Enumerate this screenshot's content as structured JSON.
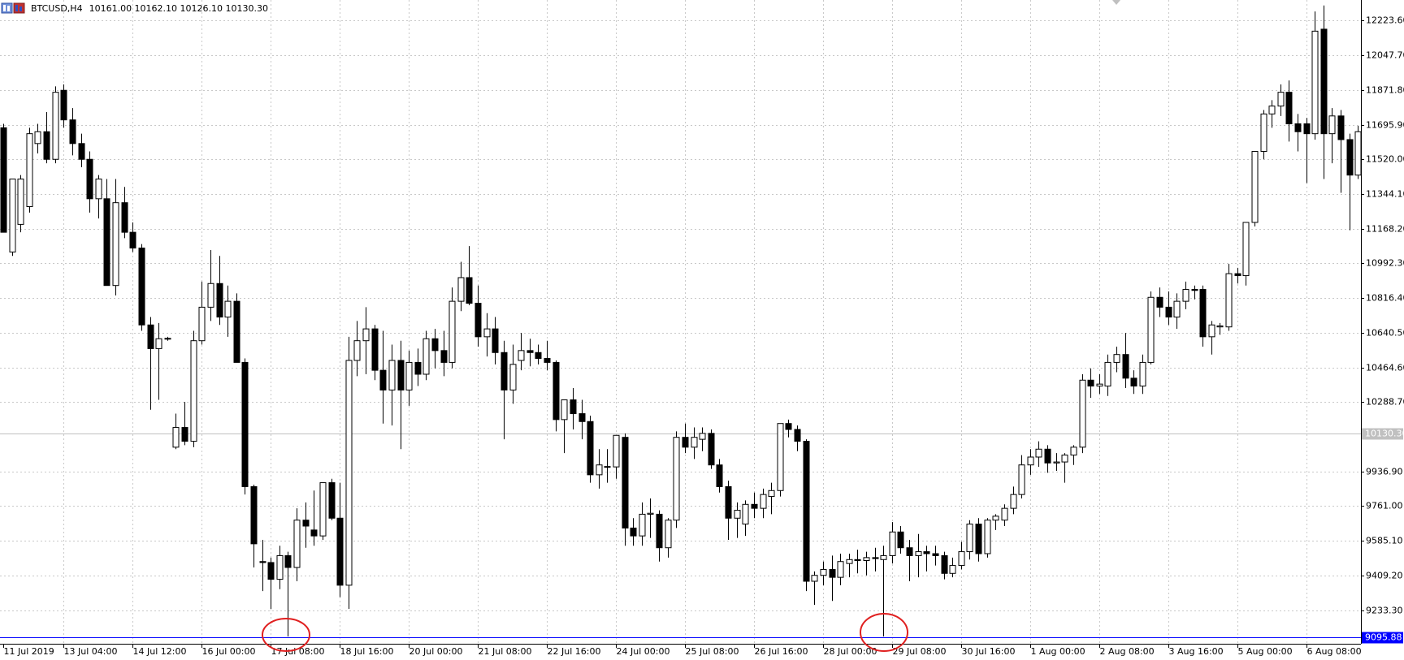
{
  "chart_data": {
    "type": "candlestick",
    "title": "BTCUSD,H4",
    "subtitle": "10161.00 10162.10 10126.10 10130.30",
    "up_color": "#ffffff",
    "down_color": "#000000",
    "wick_color": "#000000",
    "grid": true,
    "ylim": [
      9063,
      12328
    ],
    "yticks": [
      {
        "value": 12223.6,
        "label": "12223.60"
      },
      {
        "value": 12047.7,
        "label": "12047.70"
      },
      {
        "value": 11871.8,
        "label": "11871.80"
      },
      {
        "value": 11695.9,
        "label": "11695.90"
      },
      {
        "value": 11520,
        "label": "11520.00"
      },
      {
        "value": 11344.1,
        "label": "11344.10"
      },
      {
        "value": 11168.2,
        "label": "11168.20"
      },
      {
        "value": 10992.3,
        "label": "10992.30"
      },
      {
        "value": 10816.4,
        "label": "10816.40"
      },
      {
        "value": 10640.5,
        "label": "10640.50"
      },
      {
        "value": 10464.6,
        "label": "10464.60"
      },
      {
        "value": 10288.7,
        "label": "10288.70"
      },
      {
        "value": 9936.9,
        "label": "9936.90"
      },
      {
        "value": 9761,
        "label": "9761.00"
      },
      {
        "value": 9585.1,
        "label": "9585.10"
      },
      {
        "value": 9409.2,
        "label": "9409.20"
      },
      {
        "value": 9233.3,
        "label": "9233.30"
      }
    ],
    "hlines": [
      {
        "value": 10130.3,
        "label": "10130.30",
        "color": "#c0c0c0"
      },
      {
        "value": 9095.88,
        "label": "9095.88",
        "color": "#0000ff"
      }
    ],
    "categories": [
      "11 Jul 2019",
      null,
      null,
      null,
      null,
      null,
      null,
      "13 Jul 04:00",
      null,
      null,
      null,
      null,
      null,
      null,
      null,
      "14 Jul 12:00",
      null,
      null,
      null,
      null,
      null,
      null,
      null,
      "16 Jul 00:00",
      null,
      null,
      null,
      null,
      null,
      null,
      null,
      "17 Jul 08:00",
      null,
      null,
      null,
      null,
      null,
      null,
      null,
      "18 Jul 16:00",
      null,
      null,
      null,
      null,
      null,
      null,
      null,
      "20 Jul 00:00",
      null,
      null,
      null,
      null,
      null,
      null,
      null,
      "21 Jul 08:00",
      null,
      null,
      null,
      null,
      null,
      null,
      null,
      "22 Jul 16:00",
      null,
      null,
      null,
      null,
      null,
      null,
      null,
      "24 Jul 00:00",
      null,
      null,
      null,
      null,
      null,
      null,
      null,
      "25 Jul 08:00",
      null,
      null,
      null,
      null,
      null,
      null,
      null,
      "26 Jul 16:00",
      null,
      null,
      null,
      null,
      null,
      null,
      null,
      "28 Jul 00:00",
      null,
      null,
      null,
      null,
      null,
      null,
      null,
      "29 Jul 08:00",
      null,
      null,
      null,
      null,
      null,
      null,
      null,
      "30 Jul 16:00",
      null,
      null,
      null,
      null,
      null,
      null,
      null,
      "1 Aug 00:00",
      null,
      null,
      null,
      null,
      null,
      null,
      null,
      "2 Aug 08:00",
      null,
      null,
      null,
      null,
      null,
      null,
      null,
      "3 Aug 16:00",
      null,
      null,
      null,
      null,
      null,
      null,
      null,
      "5 Aug 00:00",
      null,
      null,
      null,
      null,
      null,
      null,
      null,
      "6 Aug 08:00",
      null,
      null,
      null,
      null,
      null,
      null
    ],
    "open": [
      11680,
      11050,
      11190,
      11280,
      11600,
      11660,
      11520,
      11870,
      11720,
      11600,
      11520,
      11320,
      11320,
      10880,
      11300,
      11150,
      11070,
      10680,
      10560,
      10610,
      10060,
      10160,
      10090,
      10600,
      10770,
      10890,
      10720,
      10800,
      10490,
      9860,
      9480,
      9475,
      9390,
      9510,
      9450,
      9690,
      9640,
      9610,
      9880,
      9700,
      9360,
      10500,
      10600,
      10660,
      10450,
      10350,
      10500,
      10350,
      10490,
      10430,
      10610,
      10550,
      10490,
      10800,
      10920,
      10790,
      10620,
      10660,
      10540,
      10350,
      10500,
      10550,
      10540,
      10510,
      10490,
      10200,
      10300,
      10230,
      10190,
      9920,
      9960,
      9960,
      10110,
      9650,
      9610,
      9720,
      9720,
      9550,
      9690,
      10110,
      10060,
      10100,
      10130,
      9970,
      9860,
      9700,
      9670,
      9770,
      9750,
      9810,
      9840,
      10180,
      10150,
      10090,
      9380,
      9410,
      9440,
      9400,
      9470,
      9490,
      9485,
      9500,
      9490,
      9510,
      9630,
      9550,
      9510,
      9530,
      9520,
      9510,
      9420,
      9460,
      9530,
      9670,
      9520,
      9690,
      9690,
      9750,
      9820,
      9970,
      10010,
      10050,
      9980,
      9985,
      10020,
      10060,
      10400,
      10370,
      10370,
      10490,
      10530,
      10410,
      10370,
      10490,
      10820,
      10770,
      10720,
      10800,
      10860,
      10860,
      10620,
      10670,
      10670,
      10940,
      10930,
      11200,
      11560,
      11750,
      11790,
      11860,
      11700,
      11700,
      11650,
      12180,
      11650,
      11740,
      11620,
      11440
    ],
    "high": [
      11700,
      11420,
      11440,
      11680,
      11700,
      11760,
      11890,
      11900,
      11780,
      11650,
      11560,
      11440,
      11420,
      11420,
      11380,
      11200,
      11090,
      10720,
      10690,
      10620,
      10230,
      10290,
      10650,
      10900,
      11060,
      11030,
      10880,
      10840,
      10510,
      9870,
      9590,
      9500,
      9560,
      9530,
      9750,
      9780,
      9840,
      9880,
      9900,
      9880,
      10620,
      10700,
      10770,
      10680,
      10650,
      10580,
      10600,
      10550,
      10560,
      10650,
      10660,
      10650,
      10870,
      11000,
      11080,
      10880,
      10740,
      10720,
      10600,
      10580,
      10640,
      10610,
      10580,
      10600,
      10500,
      10300,
      10360,
      10300,
      10220,
      10050,
      10050,
      10120,
      10130,
      9700,
      9780,
      9800,
      9740,
      9700,
      10140,
      10180,
      10160,
      10160,
      10150,
      10000,
      9890,
      9780,
      9790,
      9830,
      9850,
      9880,
      10180,
      10200,
      10170,
      10100,
      9430,
      9480,
      9510,
      9520,
      9520,
      9540,
      9530,
      9550,
      9560,
      9680,
      9660,
      9590,
      9620,
      9560,
      9560,
      9530,
      9500,
      9580,
      9690,
      9700,
      9700,
      9720,
      9770,
      9860,
      10020,
      10050,
      10090,
      10070,
      10030,
      10030,
      10070,
      10430,
      10460,
      10430,
      10530,
      10570,
      10640,
      10450,
      10530,
      10850,
      10870,
      10850,
      10840,
      10900,
      10880,
      10880,
      10700,
      10690,
      10990,
      10970,
      11200,
      11560,
      11770,
      11820,
      11900,
      11920,
      11750,
      11730,
      12270,
      12300,
      11780,
      11770,
      11650,
      11690
    ],
    "low": [
      11150,
      11030,
      11150,
      11250,
      11550,
      11500,
      11500,
      11680,
      11540,
      11480,
      11250,
      11220,
      10880,
      10830,
      11120,
      11050,
      10650,
      10250,
      10300,
      10600,
      10050,
      10070,
      10060,
      10580,
      10700,
      10680,
      10620,
      10490,
      9820,
      9450,
      9330,
      9240,
      9340,
      9100,
      9380,
      9550,
      9560,
      9590,
      9690,
      9300,
      9240,
      10420,
      10430,
      10400,
      10180,
      10170,
      10050,
      10270,
      10370,
      10400,
      10460,
      10420,
      10460,
      10750,
      10780,
      10570,
      10520,
      10480,
      10100,
      10280,
      10450,
      10470,
      10480,
      10450,
      10140,
      10030,
      10150,
      10100,
      9880,
      9850,
      9880,
      9900,
      9560,
      9560,
      9560,
      9600,
      9480,
      9500,
      9650,
      10030,
      10000,
      10040,
      9950,
      9830,
      9590,
      9600,
      9610,
      9700,
      9700,
      9720,
      9810,
      10110,
      10040,
      9330,
      9260,
      9360,
      9280,
      9360,
      9400,
      9420,
      9410,
      9430,
      9100,
      9470,
      9520,
      9380,
      9400,
      9430,
      9460,
      9390,
      9400,
      9440,
      9490,
      9480,
      9500,
      9640,
      9660,
      9720,
      9800,
      9920,
      9960,
      9930,
      9940,
      9880,
      9970,
      10030,
      10310,
      10330,
      10320,
      10440,
      10360,
      10330,
      10330,
      10480,
      10720,
      10680,
      10660,
      10760,
      10810,
      10570,
      10530,
      10630,
      10650,
      10890,
      10880,
      11180,
      11520,
      11680,
      11740,
      11610,
      11560,
      11400,
      11620,
      11420,
      11500,
      11350,
      11160,
      11420
    ],
    "close": [
      11150,
      11420,
      11420,
      11650,
      11660,
      11520,
      11860,
      11720,
      11600,
      11520,
      11320,
      11420,
      10880,
      11300,
      11150,
      11070,
      10680,
      10560,
      10610,
      10612,
      10160,
      10090,
      10600,
      10770,
      10890,
      10720,
      10800,
      10490,
      9860,
      9570,
      9475,
      9390,
      9510,
      9450,
      9690,
      9660,
      9610,
      9880,
      9700,
      9360,
      10500,
      10600,
      10660,
      10450,
      10350,
      10500,
      10350,
      10490,
      10430,
      10610,
      10550,
      10490,
      10800,
      10920,
      10790,
      10620,
      10660,
      10540,
      10350,
      10480,
      10550,
      10540,
      10510,
      10490,
      10200,
      10300,
      10230,
      10190,
      9920,
      9970,
      9962,
      10120,
      9650,
      9610,
      9720,
      9725,
      9550,
      9690,
      10110,
      10060,
      10110,
      10130,
      9970,
      9860,
      9700,
      9740,
      9770,
      9750,
      9820,
      9840,
      10180,
      10150,
      10090,
      9380,
      9410,
      9440,
      9400,
      9480,
      9490,
      9485,
      9500,
      9495,
      9510,
      9630,
      9550,
      9510,
      9530,
      9520,
      9510,
      9420,
      9460,
      9530,
      9670,
      9520,
      9690,
      9710,
      9750,
      9820,
      9970,
      10010,
      10050,
      9980,
      9985,
      10020,
      10060,
      10400,
      10370,
      10380,
      10490,
      10530,
      10410,
      10370,
      10490,
      10820,
      10770,
      10720,
      10800,
      10860,
      10855,
      10620,
      10680,
      10675,
      10940,
      10930,
      11200,
      11560,
      11750,
      11790,
      11860,
      11700,
      11660,
      11650,
      12170,
      11650,
      11740,
      11620,
      11440,
      11660
    ]
  }
}
